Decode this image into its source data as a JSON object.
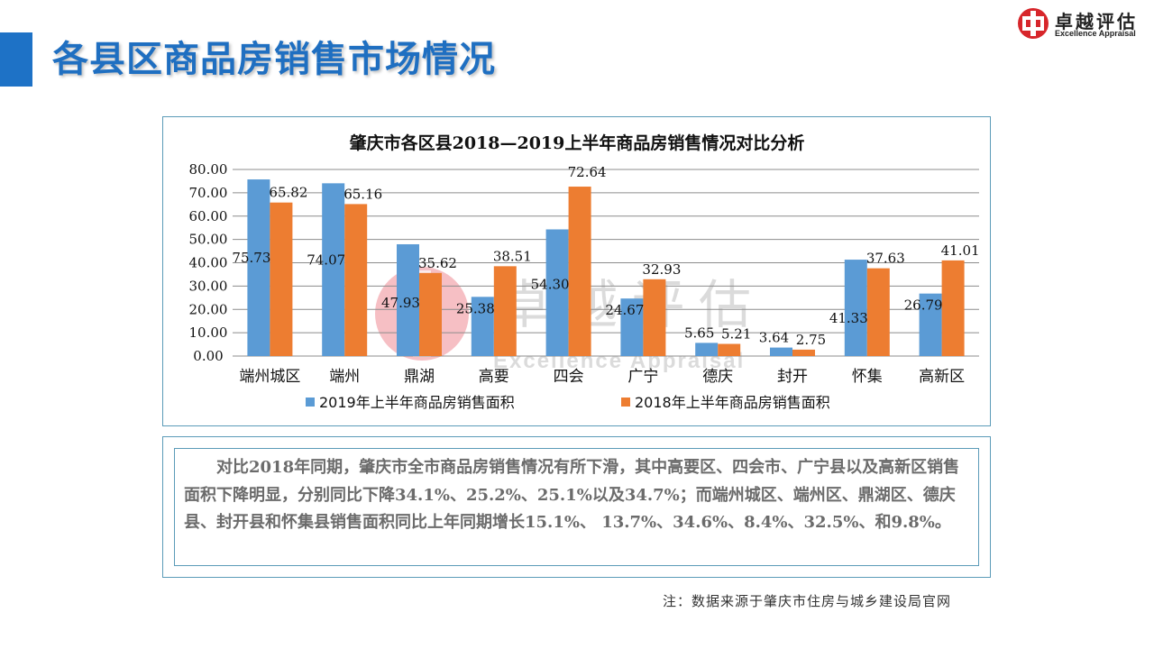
{
  "page": {
    "title": "各县区商品房销售市场情况"
  },
  "logo": {
    "cn": "卓越评估",
    "en": "Excellence Appraisal"
  },
  "watermark": {
    "cn": "卓越评估",
    "en": "Excellence Appraisal"
  },
  "chart_data": {
    "type": "bar",
    "title": "肇庆市各区县2018—2019上半年商品房销售情况对比分析",
    "categories": [
      "端州城区",
      "端州",
      "鼎湖",
      "高要",
      "四会",
      "广宁",
      "德庆",
      "封开",
      "怀集",
      "高新区"
    ],
    "series": [
      {
        "name": "2019年上半年商品房销售面积",
        "color": "#5b9bd5",
        "values": [
          75.73,
          74.07,
          47.93,
          25.38,
          54.3,
          24.67,
          5.65,
          3.64,
          41.33,
          26.79
        ]
      },
      {
        "name": "2018年上半年商品房销售面积",
        "color": "#ed7d31",
        "values": [
          65.82,
          65.16,
          35.62,
          38.51,
          72.64,
          32.93,
          5.21,
          2.75,
          37.63,
          41.01
        ]
      }
    ],
    "ylim": [
      0,
      80
    ],
    "yticks": [
      "0.00",
      "10.00",
      "20.00",
      "30.00",
      "40.00",
      "50.00",
      "60.00",
      "70.00",
      "80.00"
    ],
    "xlabel": "",
    "ylabel": "",
    "grid": true,
    "legend": "bottom"
  },
  "note": {
    "text": "对比2018年同期，肇庆市全市商品房销售情况有所下滑，其中高要区、四会市、广宁县以及高新区销售面积下降明显，分别同比下降34.1%、25.2%、25.1%以及34.7%；而端州城区、端州区、鼎湖区、德庆县、封开县和怀集县销售面积同比上年同期增长15.1%、 13.7%、34.6%、8.4%、32.5%、和9.8%。"
  },
  "source": "注：数据来源于肇庆市住房与城乡建设局官网"
}
